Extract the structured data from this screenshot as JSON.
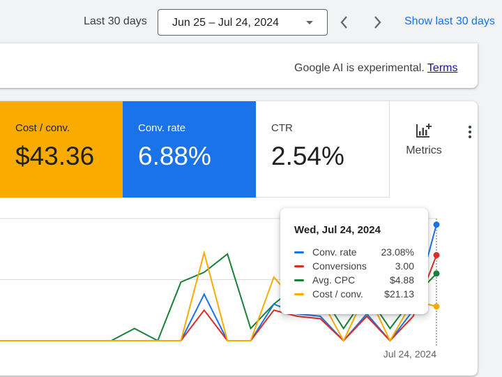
{
  "toolbar": {
    "range_label": "Last 30 days",
    "date_range": "Jun 25 – Jul 24, 2024",
    "prev_icon": "chevron-left-icon",
    "next_icon": "chevron-right-icon",
    "show_last_label": "Show last 30 days"
  },
  "ai_notice": {
    "text": "Google AI is experimental.",
    "terms_link": "Terms"
  },
  "scorecards": [
    {
      "name": "Cost / conv.",
      "value": "$43.36",
      "color": "#f9ab00"
    },
    {
      "name": "Conv. rate",
      "value": "6.88%",
      "color": "#1a73e8"
    },
    {
      "name": "CTR",
      "value": "2.54%",
      "color": "#ffffff"
    }
  ],
  "metrics_button": {
    "label": "Metrics",
    "icon": "add-chart-icon"
  },
  "more_icon": "more-vert-icon",
  "tooltip": {
    "date": "Wed, Jul 24, 2024",
    "rows": [
      {
        "name": "Conv. rate",
        "value": "23.08%",
        "color": "#1a73e8"
      },
      {
        "name": "Conversions",
        "value": "3.00",
        "color": "#d93025"
      },
      {
        "name": "Avg. CPC",
        "value": "$4.88",
        "color": "#188038"
      },
      {
        "name": "Cost / conv.",
        "value": "$21.13",
        "color": "#f9ab00"
      }
    ]
  },
  "chart_data": {
    "type": "line",
    "x_tick_labels": [
      "Jul 24, 2024"
    ],
    "grid": true,
    "series": [
      {
        "name": "Avg. CPC",
        "color": "#188038",
        "values": [
          0,
          0,
          0,
          0,
          0,
          0,
          0.1,
          0,
          0.48,
          0.56,
          0.71,
          0.1,
          0.3,
          0.45,
          0.4,
          0.1,
          0.38,
          0.1,
          0.35,
          0.55
        ]
      },
      {
        "name": "Conv. rate",
        "color": "#1a73e8",
        "values": [
          0,
          0,
          0,
          0,
          0,
          0,
          0,
          0,
          0,
          0.38,
          0,
          0,
          0.3,
          0.22,
          0.2,
          0,
          0.22,
          0,
          0.25,
          0.95
        ]
      },
      {
        "name": "Conversions",
        "color": "#d93025",
        "values": [
          0,
          0,
          0,
          0,
          0,
          0,
          0,
          0,
          0,
          0.25,
          0,
          0,
          0.25,
          0.2,
          0.18,
          0,
          0.2,
          0,
          0.2,
          0.7
        ]
      },
      {
        "name": "Cost / conv.",
        "color": "#f9ab00",
        "values": [
          0,
          0,
          0,
          0,
          0,
          0,
          0,
          0,
          0,
          0.72,
          0,
          0,
          0.52,
          0.3,
          0.35,
          0,
          0.4,
          0,
          0.33,
          0.28
        ]
      }
    ]
  }
}
